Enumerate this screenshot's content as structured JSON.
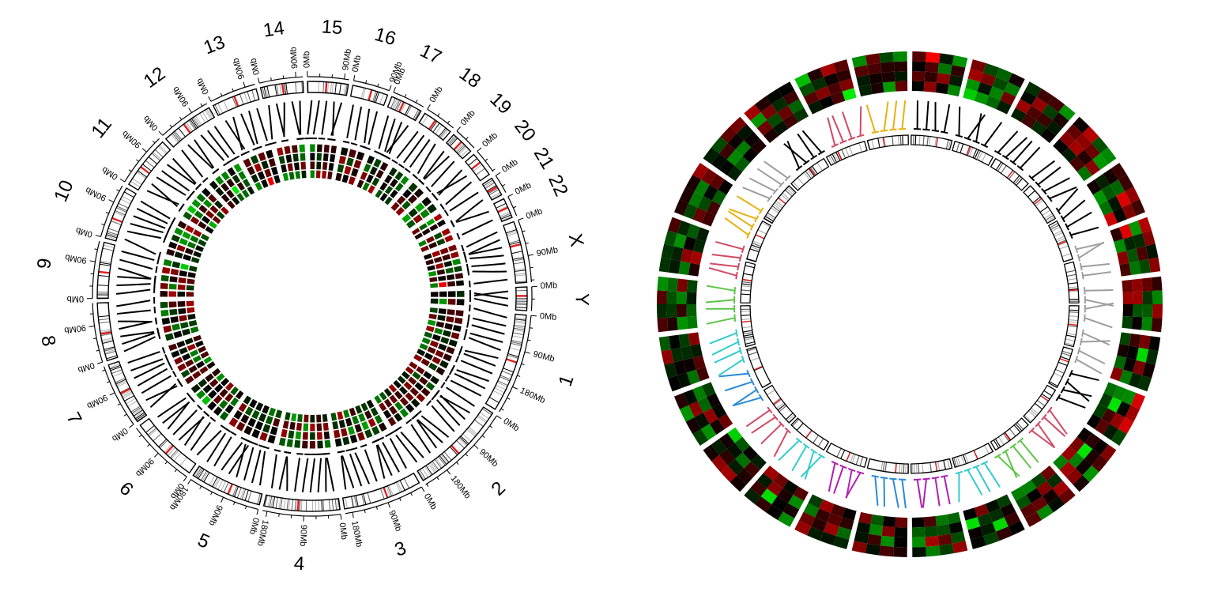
{
  "left_panel": {
    "chromosomes": [
      {
        "name": "1",
        "size": 249
      },
      {
        "name": "2",
        "size": 243
      },
      {
        "name": "3",
        "size": 198
      },
      {
        "name": "4",
        "size": 191
      },
      {
        "name": "5",
        "size": 181
      },
      {
        "name": "6",
        "size": 171
      },
      {
        "name": "7",
        "size": 159
      },
      {
        "name": "8",
        "size": 146
      },
      {
        "name": "9",
        "size": 141
      },
      {
        "name": "10",
        "size": 135
      },
      {
        "name": "11",
        "size": 135
      },
      {
        "name": "12",
        "size": 133
      },
      {
        "name": "13",
        "size": 115
      },
      {
        "name": "14",
        "size": 107
      },
      {
        "name": "15",
        "size": 102
      },
      {
        "name": "16",
        "size": 90
      },
      {
        "name": "17",
        "size": 81
      },
      {
        "name": "18",
        "size": 78
      },
      {
        "name": "19",
        "size": 59
      },
      {
        "name": "20",
        "size": 63
      },
      {
        "name": "21",
        "size": 48
      },
      {
        "name": "22",
        "size": 51
      },
      {
        "name": "X",
        "size": 155
      },
      {
        "name": "Y",
        "size": 59
      }
    ],
    "axis_labels": [
      "0Mb",
      "90Mb",
      "180Mb"
    ]
  },
  "colors": {
    "heat_low": "#00ee00",
    "heat_mid": "#000000",
    "heat_high": "#ff0000",
    "centromere": "#e31a1c",
    "link_black": "#000000",
    "right_link_colors": [
      "#e8b010",
      "#9e9e9e",
      "#000000",
      "#d14a63",
      "#5ec448",
      "#30cccc",
      "#b020b0",
      "#2a8ad8"
    ]
  }
}
